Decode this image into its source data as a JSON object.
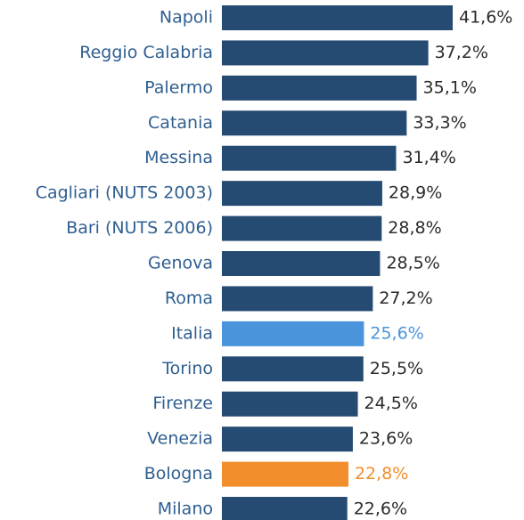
{
  "chart_data": {
    "type": "barh",
    "categories": [
      "Napoli",
      "Reggio Calabria",
      "Palermo",
      "Catania",
      "Messina",
      "Cagliari (NUTS 2003)",
      "Bari (NUTS 2006)",
      "Genova",
      "Roma",
      "Italia",
      "Torino",
      "Firenze",
      "Venezia",
      "Bologna",
      "Milano"
    ],
    "values": [
      41.6,
      37.2,
      35.1,
      33.3,
      31.4,
      28.9,
      28.8,
      28.5,
      27.2,
      25.6,
      25.5,
      24.5,
      23.6,
      22.8,
      22.6
    ],
    "value_labels": [
      "41,6%",
      "37,2%",
      "35,1%",
      "33,3%",
      "31,4%",
      "28,9%",
      "28,8%",
      "28,5%",
      "27,2%",
      "25,6%",
      "25,5%",
      "24,5%",
      "23,6%",
      "22,8%",
      "22,6%"
    ],
    "colors": [
      "#264b73",
      "#264b73",
      "#264b73",
      "#264b73",
      "#264b73",
      "#264b73",
      "#264b73",
      "#264b73",
      "#264b73",
      "#4a94db",
      "#264b73",
      "#264b73",
      "#264b73",
      "#f28e2b",
      "#264b73"
    ],
    "label_colors": [
      "#2b2b2b",
      "#2b2b2b",
      "#2b2b2b",
      "#2b2b2b",
      "#2b2b2b",
      "#2b2b2b",
      "#2b2b2b",
      "#2b2b2b",
      "#2b2b2b",
      "#4a94db",
      "#2b2b2b",
      "#2b2b2b",
      "#2b2b2b",
      "#f28e2b",
      "#2b2b2b"
    ]
  }
}
